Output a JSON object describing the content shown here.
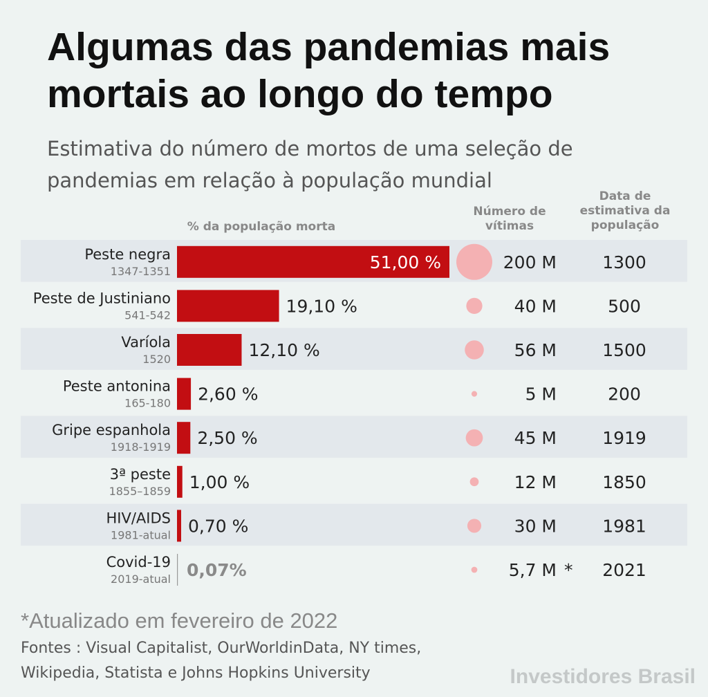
{
  "title": "Algumas das pandemias mais mortais ao longo do tempo",
  "subtitle": "Estimativa do número de mortos de uma seleção de pandemias em relação à população mundial",
  "columns": {
    "percent": "% da população morta",
    "victims": "Número de vítimas",
    "date": "Data de estimativa da população"
  },
  "chart_data": {
    "type": "bar",
    "orientation": "horizontal",
    "categories": [
      "Peste negra",
      "Peste de Justiniano",
      "Varíola",
      "Peste antonina",
      "Gripe espanhola",
      "3ª peste",
      "HIV/AIDS",
      "Covid-19"
    ],
    "periods": [
      "1347-1351",
      "541-542",
      "1520",
      "165-180",
      "1918-1919",
      "1855–1859",
      "1981-atual",
      "2019-atual"
    ],
    "values": [
      51.0,
      19.1,
      12.1,
      2.6,
      2.5,
      1.0,
      0.7,
      0.07
    ],
    "value_labels": [
      "51,00 %",
      "19,10 %",
      "12,10 %",
      "2,60 %",
      "2,50 %",
      "1,00 %",
      "0,70 %",
      "0,07%"
    ],
    "victims_millions": [
      200,
      40,
      56,
      5,
      45,
      12,
      30,
      5.7
    ],
    "victims_labels": [
      "200 M",
      "40 M",
      "56 M",
      "5 M",
      "45 M",
      "12 M",
      "30 M",
      "5,7 M *"
    ],
    "population_year_labels": [
      "1300",
      "500",
      "1500",
      "200",
      "1919",
      "1850",
      "1981",
      "2021"
    ],
    "bar_color": "#c20e12",
    "bubble_color": "#f4b1b3",
    "row_band_color": "#e3e8ec"
  },
  "footnote": "*Atualizado em fevereiro de 2022",
  "sources": "Fontes : Visual Capitalist, OurWorldinData, NY times, Wikipedia, Statista e Johns Hopkins University",
  "brand": "Investidores Brasil"
}
